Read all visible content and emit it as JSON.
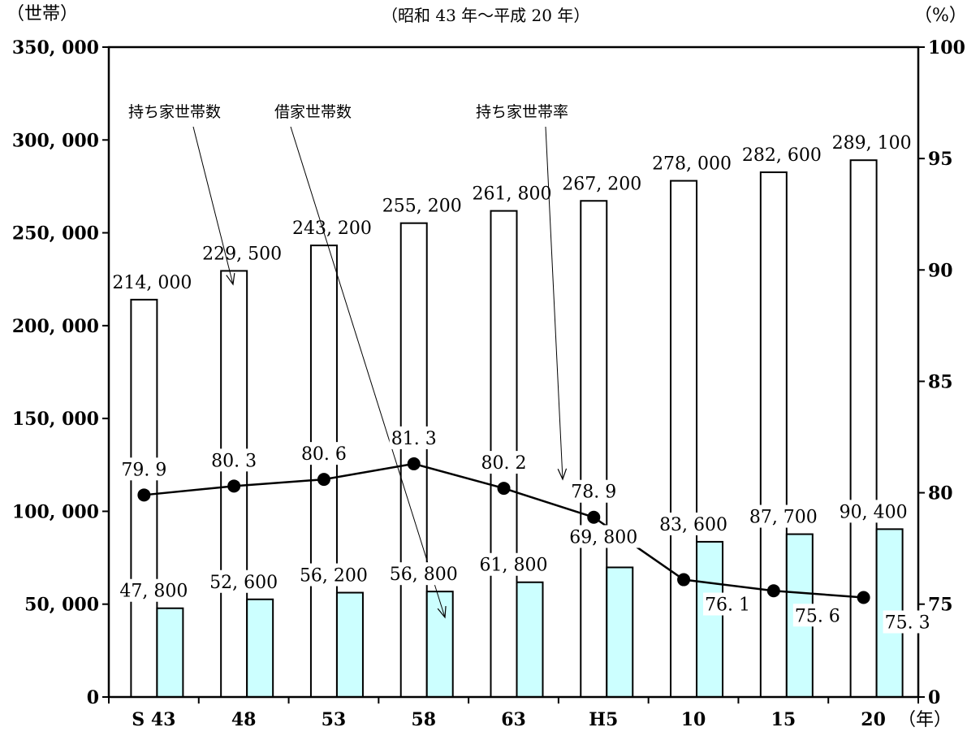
{
  "chart_data": {
    "type": "bar",
    "subtitle": "（昭和 43 年～平成 20 年）",
    "y_left_unit": "（世帯）",
    "y_right_unit": "（%）",
    "x_unit": "（年）",
    "categories": [
      "S 43",
      "48",
      "53",
      "58",
      "63",
      "H5",
      "10",
      "15",
      "20"
    ],
    "y_left_ticks": [
      "0",
      "50, 000",
      "100, 000",
      "150, 000",
      "200, 000",
      "250, 000",
      "300, 000",
      "350, 000"
    ],
    "y_right_ticks": [
      "0",
      "75",
      "80",
      "85",
      "90",
      "95",
      "100"
    ],
    "ylim_left": [
      0,
      350000
    ],
    "ylim_right_scale": [
      {
        "value": 0,
        "at": 0
      },
      {
        "value": 75,
        "at": 50000
      },
      {
        "value": 100,
        "at": 350000
      }
    ],
    "series": [
      {
        "name": "持ち家世帯数",
        "kind": "bar",
        "color": "#ffffff",
        "values": [
          214000,
          229500,
          243200,
          255200,
          261800,
          267200,
          278000,
          282600,
          289100
        ],
        "labels": [
          "214, 000",
          "229, 500",
          "243, 200",
          "255, 200",
          "261, 800",
          "267, 200",
          "278, 000",
          "282, 600",
          "289, 100"
        ]
      },
      {
        "name": "借家世帯数",
        "kind": "bar",
        "color": "#ccffff",
        "values": [
          47800,
          52600,
          56200,
          56800,
          61800,
          69800,
          83600,
          87700,
          90400
        ],
        "labels": [
          "47, 800",
          "52, 600",
          "56, 200",
          "56, 800",
          "61, 800",
          "69, 800",
          "83, 600",
          "87, 700",
          "90, 400"
        ]
      },
      {
        "name": "持ち家世帯率",
        "kind": "line",
        "axis": "right",
        "color": "#000000",
        "values": [
          79.9,
          80.3,
          80.6,
          81.3,
          80.2,
          78.9,
          76.1,
          75.6,
          75.3
        ],
        "labels": [
          "79. 9",
          "80. 3",
          "80. 6",
          "81. 3",
          "80. 2",
          "78. 9",
          "76. 1",
          "75. 6",
          "75. 3"
        ]
      }
    ],
    "annotations": [
      "持ち家世帯数",
      "借家世帯数",
      "持ち家世帯率"
    ],
    "grid": false
  }
}
